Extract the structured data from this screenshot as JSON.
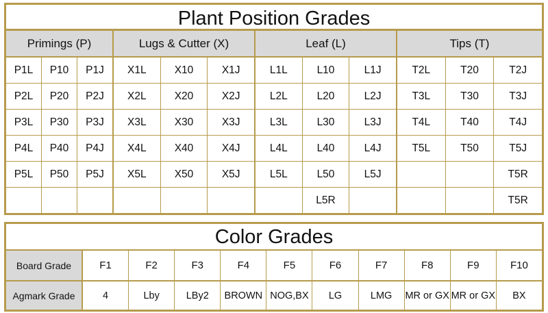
{
  "plant_position": {
    "title": "Plant Position Grades",
    "groups": [
      {
        "name": "Primings (P)",
        "rows": [
          [
            "P1L",
            "P10",
            "P1J"
          ],
          [
            "P2L",
            "P20",
            "P2J"
          ],
          [
            "P3L",
            "P30",
            "P3J"
          ],
          [
            "P4L",
            "P40",
            "P4J"
          ],
          [
            "P5L",
            "P50",
            "P5J"
          ],
          [
            "",
            "",
            ""
          ]
        ]
      },
      {
        "name": "Lugs & Cutter (X)",
        "rows": [
          [
            "X1L",
            "X10",
            "X1J"
          ],
          [
            "X2L",
            "X20",
            "X2J"
          ],
          [
            "X3L",
            "X30",
            "X3J"
          ],
          [
            "X4L",
            "X40",
            "X4J"
          ],
          [
            "X5L",
            "X50",
            "X5J"
          ],
          [
            "",
            "",
            ""
          ]
        ]
      },
      {
        "name": "Leaf (L)",
        "rows": [
          [
            "L1L",
            "L10",
            "L1J"
          ],
          [
            "L2L",
            "L20",
            "L2J"
          ],
          [
            "L3L",
            "L30",
            "L3J"
          ],
          [
            "L4L",
            "L40",
            "L4J"
          ],
          [
            "L5L",
            "L50",
            "L5J"
          ],
          [
            "",
            "L5R",
            ""
          ]
        ]
      },
      {
        "name": "Tips (T)",
        "rows": [
          [
            "T2L",
            "T20",
            "T2J"
          ],
          [
            "T3L",
            "T30",
            "T3J"
          ],
          [
            "T4L",
            "T40",
            "T4J"
          ],
          [
            "T5L",
            "T50",
            "T5J"
          ],
          [
            "",
            "",
            "T5R"
          ],
          [
            "",
            "",
            "T5R"
          ]
        ]
      }
    ]
  },
  "color_grades": {
    "title": "Color Grades",
    "board_label": "Board Grade",
    "agmark_label": "Agmark Grade",
    "board": [
      "F1",
      "F2",
      "F3",
      "F4",
      "F5",
      "F6",
      "F7",
      "F8",
      "F9",
      "F10"
    ],
    "agmark": [
      "4",
      "Lby",
      "LBy2",
      "BROWN",
      "NOG,BX",
      "LG",
      "LMG",
      "MR or GX",
      "MR or GX",
      "BX"
    ]
  },
  "colors": {
    "border": "#b69b4c",
    "header_bg": "#d9d9d9"
  }
}
